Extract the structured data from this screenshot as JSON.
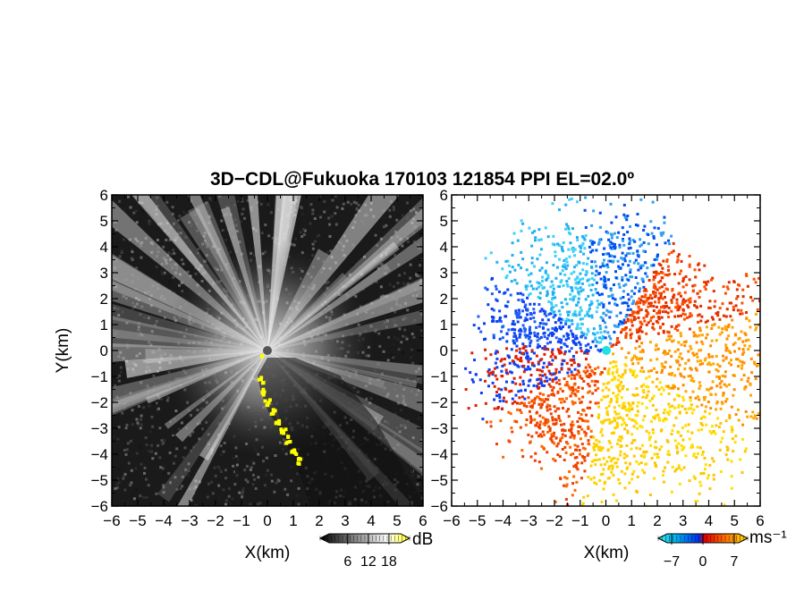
{
  "chart_data": [
    {
      "type": "heatmap",
      "title": "3D−CDL@Fukuoka 170103 121854 PPI EL=02.0º",
      "xlabel": "X(km)",
      "ylabel": "Y(km)",
      "xlim": [
        -6,
        6
      ],
      "ylim": [
        -6,
        6
      ],
      "x_ticks": [
        "−6",
        "−5",
        "−4",
        "−3",
        "−2",
        "−1",
        "0",
        "1",
        "2",
        "3",
        "4",
        "5",
        "6"
      ],
      "y_ticks": [
        "6",
        "5",
        "4",
        "3",
        "2",
        "1",
        "0",
        "−1",
        "−2",
        "−3",
        "−4",
        "−5",
        "−6"
      ],
      "colorbar": {
        "unit": "dB",
        "ticks": [
          {
            "value": 6,
            "label": "6"
          },
          {
            "value": 12,
            "label": "12"
          },
          {
            "value": 18,
            "label": "18"
          }
        ],
        "range": [
          -2,
          24
        ],
        "colors": [
          "#000000",
          "#ffffff",
          "#ffff00"
        ]
      },
      "colormap_colors": {
        "low": "#0a0a0a",
        "high": "#ffffff",
        "saturated": "#ffff00"
      }
    },
    {
      "type": "heatmap",
      "xlabel": "X(km)",
      "xlim": [
        -6,
        6
      ],
      "ylim": [
        -6,
        6
      ],
      "x_ticks": [
        "−6",
        "−5",
        "−4",
        "−3",
        "−2",
        "−1",
        "0",
        "1",
        "2",
        "3",
        "4",
        "5",
        "6"
      ],
      "y_ticks": [
        "6",
        "5",
        "4",
        "3",
        "2",
        "1",
        "0",
        "−1",
        "−2",
        "−3",
        "−4",
        "−5",
        "−6"
      ],
      "colorbar": {
        "unit": "ms⁻¹",
        "ticks": [
          {
            "value": -7,
            "label": "−7"
          },
          {
            "value": 0,
            "label": "0"
          },
          {
            "value": 7,
            "label": "7"
          }
        ],
        "range": [
          -10,
          10
        ],
        "colors": [
          "#1ee0f0",
          "#00a0e8",
          "#0040f0",
          "#e01000",
          "#ff7000",
          "#ffe000"
        ]
      },
      "colormap_colors": {
        "approaching": "#1040f0",
        "receding": "#ff6000",
        "strong_receding": "#ffe000",
        "near_zero": "#20d0e0"
      }
    }
  ]
}
